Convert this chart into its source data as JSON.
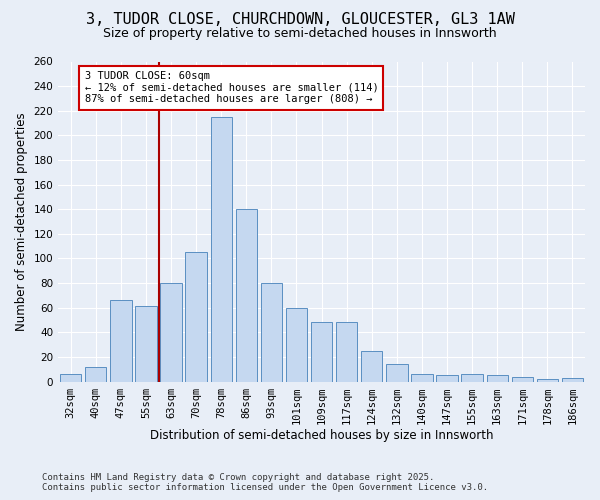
{
  "title1": "3, TUDOR CLOSE, CHURCHDOWN, GLOUCESTER, GL3 1AW",
  "title2": "Size of property relative to semi-detached houses in Innsworth",
  "xlabel": "Distribution of semi-detached houses by size in Innsworth",
  "ylabel": "Number of semi-detached properties",
  "categories": [
    "32sqm",
    "40sqm",
    "47sqm",
    "55sqm",
    "63sqm",
    "70sqm",
    "78sqm",
    "86sqm",
    "93sqm",
    "101sqm",
    "109sqm",
    "117sqm",
    "124sqm",
    "132sqm",
    "140sqm",
    "147sqm",
    "155sqm",
    "163sqm",
    "171sqm",
    "178sqm",
    "186sqm"
  ],
  "values": [
    6,
    12,
    66,
    61,
    80,
    105,
    215,
    140,
    80,
    60,
    48,
    48,
    25,
    14,
    6,
    5,
    6,
    5,
    4,
    2,
    3
  ],
  "bar_color": "#c5d8f0",
  "bar_edge_color": "#5a8fc2",
  "vline_x_index": 3.5,
  "annotation_title": "3 TUDOR CLOSE: 60sqm",
  "annotation_line1": "← 12% of semi-detached houses are smaller (114)",
  "annotation_line2": "87% of semi-detached houses are larger (808) →",
  "annotation_box_color": "#ffffff",
  "annotation_box_edge": "#cc0000",
  "vline_color": "#aa0000",
  "ylim": [
    0,
    260
  ],
  "yticks": [
    0,
    20,
    40,
    60,
    80,
    100,
    120,
    140,
    160,
    180,
    200,
    220,
    240,
    260
  ],
  "footer1": "Contains HM Land Registry data © Crown copyright and database right 2025.",
  "footer2": "Contains public sector information licensed under the Open Government Licence v3.0.",
  "bg_color": "#e8eef7",
  "plot_bg_color": "#e8eef7",
  "grid_color": "#ffffff",
  "title1_fontsize": 11,
  "title2_fontsize": 9,
  "tick_fontsize": 7.5,
  "label_fontsize": 8.5,
  "footer_fontsize": 6.5,
  "annot_fontsize": 7.5
}
